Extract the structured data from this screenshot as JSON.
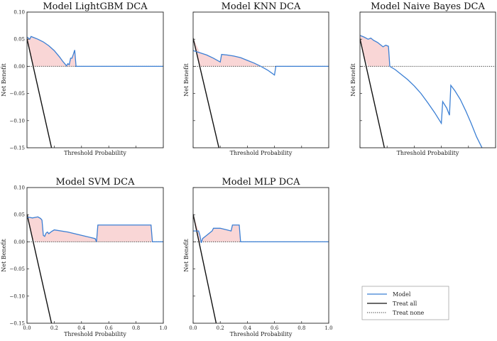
{
  "chart_data": [
    {
      "type": "line",
      "title": "Model LightGBM DCA",
      "xlabel": "Threshold Probability",
      "ylabel": "Net Benefit",
      "xlim": [
        0,
        1
      ],
      "ylim": [
        -0.15,
        0.1
      ],
      "xticks": [],
      "yticks": [
        "0.10",
        "0.05",
        "0.00",
        "−0.05",
        "−0.10",
        "−0.15"
      ],
      "grid": false,
      "series": [
        {
          "name": "Model",
          "x": [
            0,
            0.01,
            0.02,
            0.03,
            0.05,
            0.08,
            0.12,
            0.16,
            0.2,
            0.24,
            0.26,
            0.28,
            0.29,
            0.3,
            0.31,
            0.32,
            0.33,
            0.34,
            0.35,
            0.36,
            0.4,
            0.6,
            0.8,
            1.0
          ],
          "y": [
            0.054,
            0.052,
            0.05,
            0.055,
            0.053,
            0.05,
            0.045,
            0.038,
            0.029,
            0.017,
            0.01,
            0.004,
            0.001,
            0.005,
            0.003,
            0.015,
            0.015,
            0.022,
            0.03,
            0.0,
            0.0,
            0.0,
            0.0,
            0.0
          ]
        },
        {
          "name": "Treat all",
          "x": [
            0,
            0.18
          ],
          "y": [
            0.051,
            -0.15
          ]
        },
        {
          "name": "Treat none",
          "x": [
            0,
            1
          ],
          "y": [
            0,
            0
          ]
        }
      ]
    },
    {
      "type": "line",
      "title": "Model KNN DCA",
      "xlabel": "Threshold Probability",
      "ylabel": "Net Benefit",
      "xlim": [
        0,
        1
      ],
      "ylim": [
        -0.15,
        0.1
      ],
      "xticks": [],
      "yticks": [],
      "grid": false,
      "series": [
        {
          "name": "Model",
          "x": [
            0,
            0.05,
            0.1,
            0.15,
            0.2,
            0.21,
            0.25,
            0.3,
            0.35,
            0.4,
            0.45,
            0.5,
            0.55,
            0.6,
            0.61,
            0.7,
            0.8,
            0.9,
            1.0
          ],
          "y": [
            0.029,
            0.025,
            0.021,
            0.015,
            0.008,
            0.022,
            0.021,
            0.019,
            0.016,
            0.011,
            0.006,
            0.0,
            -0.007,
            -0.016,
            0.0,
            0.0,
            0.0,
            0.0,
            0.0
          ]
        },
        {
          "name": "Treat all",
          "x": [
            0,
            0.19
          ],
          "y": [
            0.052,
            -0.15
          ]
        },
        {
          "name": "Treat none",
          "x": [
            0,
            1
          ],
          "y": [
            0,
            0
          ]
        }
      ]
    },
    {
      "type": "line",
      "title": "Model Naive Bayes DCA",
      "xlabel": "Threshold Probability",
      "ylabel": "Net Benefit",
      "xlim": [
        0,
        1
      ],
      "ylim": [
        -0.15,
        0.1
      ],
      "xticks": [],
      "yticks": [],
      "grid": false,
      "series": [
        {
          "name": "Model",
          "x": [
            0,
            0.03,
            0.06,
            0.08,
            0.1,
            0.13,
            0.17,
            0.19,
            0.21,
            0.22,
            0.26,
            0.3,
            0.35,
            0.4,
            0.45,
            0.5,
            0.55,
            0.6,
            0.61,
            0.64,
            0.66,
            0.67,
            0.7,
            0.74,
            0.78,
            0.82,
            0.86,
            0.9
          ],
          "y": [
            0.057,
            0.054,
            0.05,
            0.052,
            0.048,
            0.044,
            0.036,
            0.039,
            0.037,
            0.0,
            -0.006,
            -0.014,
            -0.024,
            -0.036,
            -0.05,
            -0.067,
            -0.085,
            -0.105,
            -0.065,
            -0.077,
            -0.09,
            -0.035,
            -0.045,
            -0.061,
            -0.082,
            -0.105,
            -0.13,
            -0.15
          ]
        },
        {
          "name": "Treat all",
          "x": [
            0,
            0.18
          ],
          "y": [
            0.051,
            -0.15
          ]
        },
        {
          "name": "Treat none",
          "x": [
            0,
            1
          ],
          "y": [
            0,
            0
          ]
        }
      ]
    },
    {
      "type": "line",
      "title": "Model SVM DCA",
      "xlabel": "Threshold Probability",
      "ylabel": "Net Benefit",
      "xlim": [
        0,
        1
      ],
      "ylim": [
        -0.15,
        0.1
      ],
      "xticks": [
        "0.0",
        "0.2",
        "0.4",
        "0.6",
        "0.8",
        "1.0"
      ],
      "yticks": [
        "0.10",
        "0.05",
        "0.00",
        "−0.05",
        "−0.10",
        "−0.15"
      ],
      "grid": false,
      "series": [
        {
          "name": "Model",
          "x": [
            0,
            0.02,
            0.04,
            0.06,
            0.08,
            0.1,
            0.11,
            0.12,
            0.13,
            0.14,
            0.15,
            0.16,
            0.18,
            0.2,
            0.3,
            0.4,
            0.5,
            0.51,
            0.52,
            0.6,
            0.7,
            0.8,
            0.9,
            0.91,
            0.92,
            1.0
          ],
          "y": [
            0.045,
            0.045,
            0.044,
            0.045,
            0.046,
            0.043,
            0.04,
            0.012,
            0.01,
            0.016,
            0.018,
            0.015,
            0.019,
            0.022,
            0.018,
            0.012,
            0.006,
            0.0,
            0.031,
            0.031,
            0.031,
            0.031,
            0.031,
            0.031,
            0.0,
            0.0
          ]
        },
        {
          "name": "Treat all",
          "x": [
            0,
            0.18
          ],
          "y": [
            0.051,
            -0.15
          ]
        },
        {
          "name": "Treat none",
          "x": [
            0,
            1
          ],
          "y": [
            0,
            0
          ]
        }
      ]
    },
    {
      "type": "line",
      "title": "Model MLP DCA",
      "xlabel": "Threshold Probability",
      "ylabel": "Net Benefit",
      "xlim": [
        0,
        1
      ],
      "ylim": [
        -0.15,
        0.1
      ],
      "xticks": [
        "0.0",
        "0.2",
        "0.4",
        "0.6",
        "0.8",
        "1.0"
      ],
      "yticks": [],
      "grid": false,
      "series": [
        {
          "name": "Model",
          "x": [
            0,
            0.04,
            0.05,
            0.06,
            0.07,
            0.08,
            0.1,
            0.12,
            0.14,
            0.15,
            0.2,
            0.25,
            0.28,
            0.29,
            0.3,
            0.32,
            0.34,
            0.35,
            0.4,
            0.6,
            0.8,
            1.0
          ],
          "y": [
            0.02,
            0.02,
            0.012,
            -0.002,
            0.006,
            0.008,
            0.012,
            0.016,
            0.02,
            0.025,
            0.025,
            0.022,
            0.02,
            0.031,
            0.031,
            0.031,
            0.031,
            0.0,
            0.0,
            0.0,
            0.0,
            0.0
          ]
        },
        {
          "name": "Treat all",
          "x": [
            0,
            0.17
          ],
          "y": [
            0.051,
            -0.15
          ]
        },
        {
          "name": "Treat none",
          "x": [
            0,
            1
          ],
          "y": [
            0,
            0
          ]
        }
      ]
    }
  ],
  "legend": {
    "entries": [
      {
        "label": "Model",
        "style": "model"
      },
      {
        "label": "Treat all",
        "style": "all"
      },
      {
        "label": "Treat none",
        "style": "none"
      }
    ]
  },
  "colors": {
    "model": "#3b7fd4",
    "fill": "#f9d6d6",
    "treat_all": "#111111",
    "treat_none": "#333333",
    "axis": "#222222"
  }
}
